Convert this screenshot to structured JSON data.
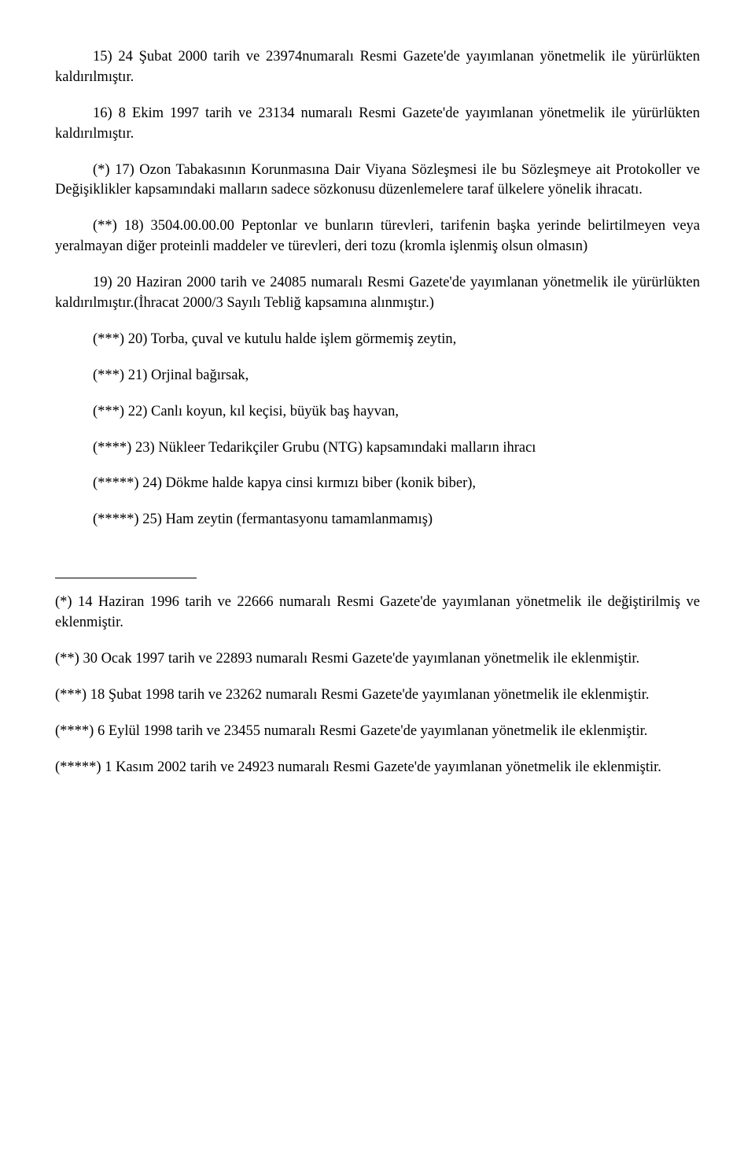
{
  "paragraphs": {
    "p15": "15) 24 Şubat 2000 tarih ve 23974numaralı Resmi Gazete'de yayımlanan yönetmelik ile yürürlükten kaldırılmıştır.",
    "p16": "16) 8 Ekim 1997 tarih ve 23134 numaralı Resmi Gazete'de yayımlanan yönetmelik ile yürürlükten kaldırılmıştır.",
    "p17": "(*) 17) Ozon Tabakasının Korunmasına Dair Viyana Sözleşmesi ile bu Sözleşmeye ait Protokoller ve Değişiklikler kapsamındaki malların sadece sözkonusu düzenlemelere taraf ülkelere yönelik ihracatı.",
    "p18": "(**) 18) 3504.00.00.00 Peptonlar ve bunların türevleri, tarifenin başka yerinde belirtilmeyen veya yeralmayan diğer proteinli maddeler ve türevleri, deri tozu (kromla işlenmiş olsun olmasın)",
    "p19": "19) 20 Haziran 2000 tarih ve 24085 numaralı  Resmi Gazete'de yayımlanan yönetmelik ile yürürlükten kaldırılmıştır.(İhracat 2000/3 Sayılı Tebliğ kapsamına alınmıştır.)",
    "p20": "(***) 20) Torba, çuval ve kutulu halde işlem görmemiş zeytin,",
    "p21": "(***) 21) Orjinal bağırsak,",
    "p22": "(***) 22) Canlı koyun, kıl keçisi, büyük baş hayvan,",
    "p23": "(****) 23) Nükleer Tedarikçiler Grubu (NTG) kapsamındaki malların ihracı",
    "p24": "(*****) 24) Dökme halde kapya cinsi kırmızı biber (konik biber),",
    "p25": "(*****) 25) Ham zeytin (fermantasyonu tamamlanmamış)"
  },
  "footnotes": {
    "f1": "(*) 14 Haziran 1996 tarih ve 22666 numaralı Resmi Gazete'de yayımlanan yönetmelik ile değiştirilmiş ve eklenmiştir.",
    "f2": "(**) 30 Ocak 1997 tarih ve 22893 numaralı Resmi Gazete'de yayımlanan yönetmelik ile eklenmiştir.",
    "f3": "(***) 18 Şubat 1998 tarih ve 23262 numaralı Resmi Gazete'de yayımlanan yönetmelik ile  eklenmiştir.",
    "f4": "(****) 6 Eylül 1998 tarih ve 23455 numaralı Resmi Gazete'de yayımlanan yönetmelik ile  eklenmiştir.",
    "f5": "(*****) 1 Kasım 2002 tarih ve 24923 numaralı Resmi Gazete'de yayımlanan yönetmelik ile  eklenmiştir."
  }
}
